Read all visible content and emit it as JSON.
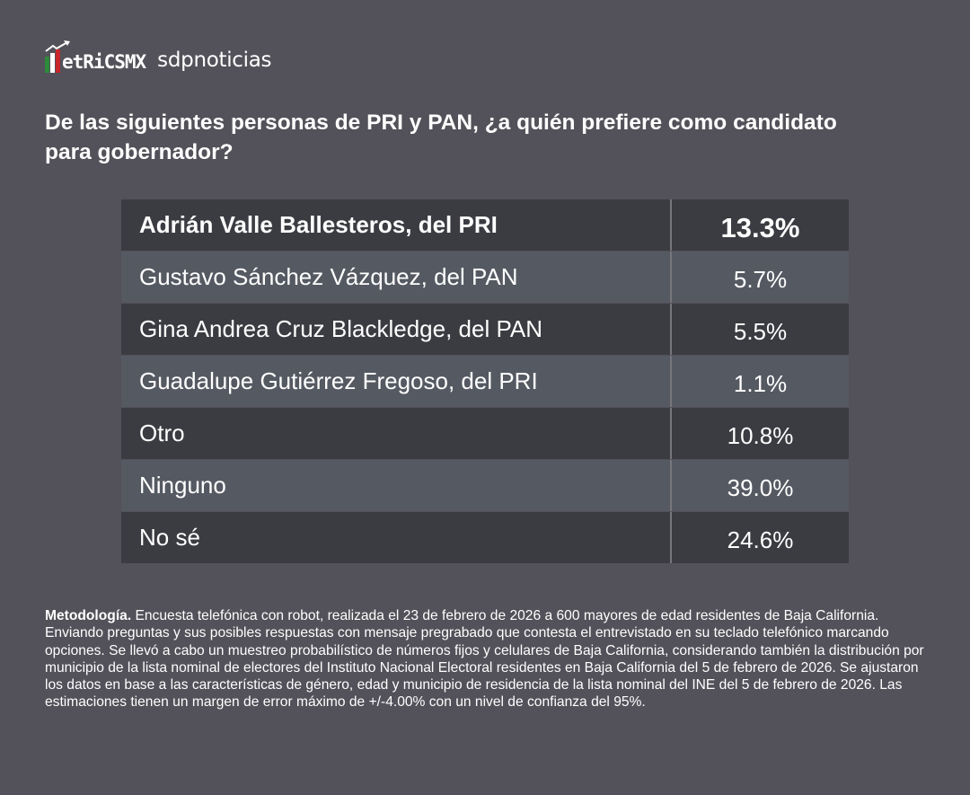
{
  "branding": {
    "logo_text": "MetRiCSMX",
    "partner": "sdpnoticias"
  },
  "title": "De las siguientes personas de PRI y PAN, ¿a quién prefiere como candidato para gobernador?",
  "rows": [
    {
      "name": "Adrián Valle Ballesteros, del PRI",
      "value": "13.3%"
    },
    {
      "name": "Gustavo Sánchez Vázquez, del PAN",
      "value": "5.7%"
    },
    {
      "name": "Gina Andrea Cruz Blackledge, del PAN",
      "value": "5.5%"
    },
    {
      "name": "Guadalupe Gutiérrez Fregoso, del PRI",
      "value": "1.1%"
    },
    {
      "name": "Otro",
      "value": "10.8%"
    },
    {
      "name": "Ninguno",
      "value": "39.0%"
    },
    {
      "name": "No sé",
      "value": "24.6%"
    }
  ],
  "methodology": {
    "label": "Metodología.",
    "text": " Encuesta telefónica con robot, realizada el 23 de febrero de 2026 a 600 mayores de edad residentes de Baja California. Enviando preguntas y sus posibles respuestas con mensaje pregrabado que contesta el entrevistado en su teclado telefónico marcando opciones. Se llevó a cabo un muestreo probabilístico de números fijos y celulares de Baja California, considerando también la distribución por municipio de la lista nominal de electores del Instituto Nacional Electoral residentes en Baja California del 5 de febrero de 2026. Se ajustaron los datos en base a las características de género, edad y municipio de residencia de la lista nominal del INE del 5 de febrero de 2026. Las estimaciones tienen un margen de error máximo de +/-4.00% con un nivel de confianza del 95%."
  },
  "colors": {
    "background": "#535159",
    "row_dark": "#3b3c42",
    "row_light": "#555962",
    "logo_green": "#2e8b3a",
    "logo_red": "#c8262c"
  }
}
